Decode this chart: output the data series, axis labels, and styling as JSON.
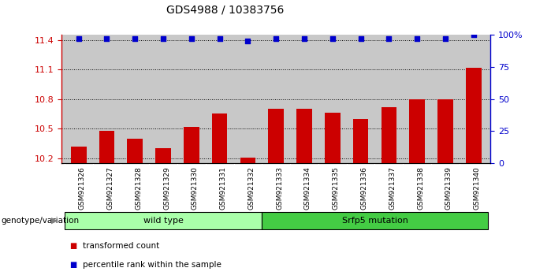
{
  "title": "GDS4988 / 10383756",
  "samples": [
    "GSM921326",
    "GSM921327",
    "GSM921328",
    "GSM921329",
    "GSM921330",
    "GSM921331",
    "GSM921332",
    "GSM921333",
    "GSM921334",
    "GSM921335",
    "GSM921336",
    "GSM921337",
    "GSM921338",
    "GSM921339",
    "GSM921340"
  ],
  "bar_values": [
    10.32,
    10.48,
    10.4,
    10.3,
    10.52,
    10.65,
    10.21,
    10.7,
    10.7,
    10.66,
    10.6,
    10.72,
    10.8,
    10.8,
    11.12
  ],
  "percentile_values": [
    97,
    97,
    97,
    97,
    97,
    97,
    95,
    97,
    97,
    97,
    97,
    97,
    97,
    97,
    100
  ],
  "bar_color": "#cc0000",
  "dot_color": "#0000cc",
  "ylim_left": [
    10.15,
    11.45
  ],
  "ylim_right": [
    0,
    100
  ],
  "yticks_left": [
    10.2,
    10.5,
    10.8,
    11.1,
    11.4
  ],
  "yticks_right": [
    0,
    25,
    50,
    75,
    100
  ],
  "ytick_labels_right": [
    "0",
    "25",
    "50",
    "75",
    "100%"
  ],
  "groups": [
    {
      "label": "wild type",
      "start": 0,
      "end": 6,
      "color": "#aaffaa"
    },
    {
      "label": "Srfp5 mutation",
      "start": 7,
      "end": 14,
      "color": "#44cc44"
    }
  ],
  "legend_items": [
    {
      "label": "transformed count",
      "color": "#cc0000"
    },
    {
      "label": "percentile rank within the sample",
      "color": "#0000cc"
    }
  ],
  "panel_bg": "#c8c8c8",
  "group_label": "genotype/variation",
  "xlim": [
    -0.6,
    14.6
  ]
}
